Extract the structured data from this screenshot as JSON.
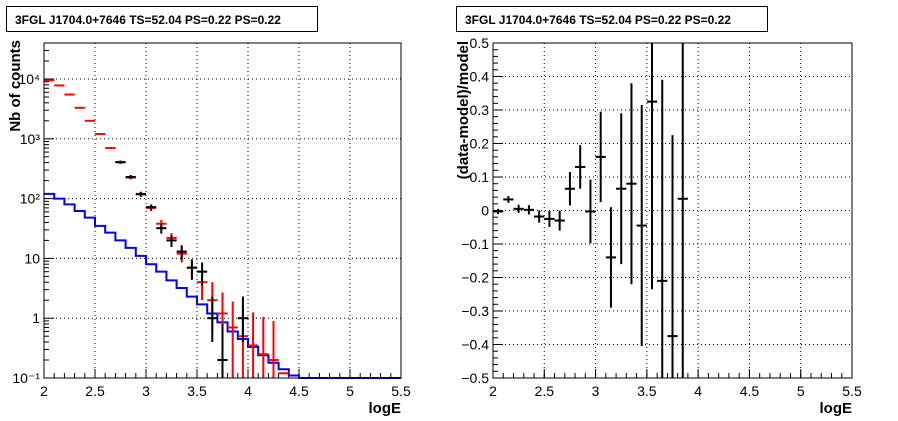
{
  "chart_data": [
    {
      "type": "step",
      "title": "3FGL J1704.0+7646 TS=52.04 PS=0.22 PS=0.22",
      "xlabel": "logE",
      "ylabel": "Nb of counts",
      "xlim": [
        2,
        5.5
      ],
      "ylim": [
        0.1,
        40000
      ],
      "yscale": "log",
      "grid": true,
      "x_ticks": [
        "2",
        "2.5",
        "3",
        "3.5",
        "4",
        "4.5",
        "5",
        "5.5"
      ],
      "y_ticks": [
        "10^-1",
        "1",
        "10",
        "10^2",
        "10^3",
        "10^4"
      ],
      "bin_edges": [
        2.0,
        2.1,
        2.2,
        2.3,
        2.4,
        2.5,
        2.6,
        2.7,
        2.8,
        2.9,
        3.0,
        3.1,
        3.2,
        3.3,
        3.4,
        3.5,
        3.6,
        3.7,
        3.8,
        3.9,
        4.0,
        4.1,
        4.2,
        4.3,
        4.4,
        4.5,
        4.6,
        4.7,
        4.8,
        4.9,
        5.0,
        5.1,
        5.2,
        5.3,
        5.4,
        5.5
      ],
      "series": [
        {
          "color": "#0000ff",
          "style": "step",
          "values": [
            120,
            100,
            80,
            62,
            48,
            35,
            27,
            20,
            15,
            11,
            8,
            6,
            4.3,
            3.2,
            2.3,
            1.7,
            1.2,
            0.85,
            0.6,
            0.45,
            0.33,
            0.24,
            0.18,
            0.14,
            0.11,
            0.1,
            0.1,
            0.1,
            0.1,
            0.1,
            0.1,
            0.1,
            0.1,
            0.1,
            0.1
          ]
        },
        {
          "color": "#ff0000",
          "style": "error-bars",
          "points": [
            {
              "x": 2.05,
              "y": 9500,
              "yerr": [
                0,
                0
              ]
            },
            {
              "x": 2.15,
              "y": 7800,
              "yerr": [
                0,
                0
              ]
            },
            {
              "x": 2.25,
              "y": 5500,
              "yerr": [
                0,
                0
              ]
            },
            {
              "x": 2.35,
              "y": 3300,
              "yerr": [
                0,
                0
              ]
            },
            {
              "x": 2.45,
              "y": 2000,
              "yerr": [
                0,
                0
              ]
            },
            {
              "x": 2.55,
              "y": 1200,
              "yerr": [
                0,
                0
              ]
            },
            {
              "x": 2.65,
              "y": 700,
              "yerr": [
                0,
                0
              ]
            },
            {
              "x": 2.75,
              "y": 410,
              "yerr": [
                25,
                25
              ]
            },
            {
              "x": 2.85,
              "y": 225,
              "yerr": [
                15,
                15
              ]
            },
            {
              "x": 2.95,
              "y": 120,
              "yerr": [
                11,
                11
              ]
            },
            {
              "x": 3.05,
              "y": 70,
              "yerr": [
                8,
                8
              ]
            },
            {
              "x": 3.15,
              "y": 38,
              "yerr": [
                6,
                6
              ]
            },
            {
              "x": 3.25,
              "y": 22,
              "yerr": [
                4.5,
                4.5
              ]
            },
            {
              "x": 3.35,
              "y": 12,
              "yerr": [
                3.5,
                3.5
              ]
            },
            {
              "x": 3.45,
              "y": 7,
              "yerr": [
                2.6,
                2.6
              ]
            },
            {
              "x": 3.55,
              "y": 4,
              "yerr": [
                2,
                2
              ]
            },
            {
              "x": 3.65,
              "y": 2,
              "yerr": [
                1.4,
                2
              ]
            },
            {
              "x": 3.75,
              "y": 1.2,
              "yerr": [
                1.1,
                1.5
              ]
            },
            {
              "x": 3.85,
              "y": 0.7,
              "yerr": [
                0.6,
                1.2
              ]
            },
            {
              "x": 3.95,
              "y": 0.5,
              "yerr": [
                0.42,
                1.1
              ]
            },
            {
              "x": 4.05,
              "y": 0.35,
              "yerr": [
                0.3,
                0.9
              ]
            },
            {
              "x": 4.15,
              "y": 0.25,
              "yerr": [
                0.2,
                0.8
              ]
            },
            {
              "x": 4.25,
              "y": 0.2,
              "yerr": [
                0.1,
                0.7
              ]
            },
            {
              "x": 4.35,
              "y": 0.12,
              "yerr": [
                0,
                0
              ]
            }
          ]
        },
        {
          "color": "#000000",
          "style": "error-bars",
          "points": [
            {
              "x": 2.75,
              "y": 405,
              "yerr": [
                25,
                25
              ]
            },
            {
              "x": 2.85,
              "y": 230,
              "yerr": [
                18,
                18
              ]
            },
            {
              "x": 2.95,
              "y": 118,
              "yerr": [
                11,
                11
              ]
            },
            {
              "x": 3.05,
              "y": 72,
              "yerr": [
                8,
                8
              ]
            },
            {
              "x": 3.15,
              "y": 32,
              "yerr": [
                6,
                6
              ]
            },
            {
              "x": 3.25,
              "y": 20,
              "yerr": [
                4.5,
                4.5
              ]
            },
            {
              "x": 3.35,
              "y": 13,
              "yerr": [
                3.6,
                3.6
              ]
            },
            {
              "x": 3.45,
              "y": 7,
              "yerr": [
                2.6,
                2.6
              ]
            },
            {
              "x": 3.55,
              "y": 6,
              "yerr": [
                2.5,
                2.5
              ]
            },
            {
              "x": 3.65,
              "y": 1,
              "yerr": [
                0.6,
                1.3
              ]
            },
            {
              "x": 3.75,
              "y": 0.2,
              "yerr": [
                0.1,
                0.6
              ]
            },
            {
              "x": 3.95,
              "y": 1,
              "yerr": [
                0.6,
                1.3
              ]
            }
          ]
        }
      ]
    },
    {
      "type": "error-bars",
      "title": "3FGL J1704.0+7646 TS=52.04 PS=0.22 PS=0.22",
      "xlabel": "logE",
      "ylabel": "(data-model)/model",
      "xlim": [
        2,
        5.5
      ],
      "ylim": [
        -0.5,
        0.5
      ],
      "grid": true,
      "x_ticks": [
        "2",
        "2.5",
        "3",
        "3.5",
        "4",
        "4.5",
        "5",
        "5.5"
      ],
      "y_ticks": [
        "-0.5",
        "-0.4",
        "-0.3",
        "-0.2",
        "-0.1",
        "0",
        "0.1",
        "0.2",
        "0.3",
        "0.4",
        "0.5"
      ],
      "series": [
        {
          "color": "#000000",
          "points": [
            {
              "x": 2.05,
              "y": -0.003,
              "yerr": 0.008
            },
            {
              "x": 2.15,
              "y": 0.033,
              "yerr": 0.01
            },
            {
              "x": 2.25,
              "y": 0.005,
              "yerr": 0.012
            },
            {
              "x": 2.35,
              "y": 0.002,
              "yerr": 0.014
            },
            {
              "x": 2.45,
              "y": -0.018,
              "yerr": 0.018
            },
            {
              "x": 2.55,
              "y": -0.025,
              "yerr": 0.024
            },
            {
              "x": 2.65,
              "y": -0.03,
              "yerr": 0.03
            },
            {
              "x": 2.75,
              "y": 0.065,
              "yerr": 0.05
            },
            {
              "x": 2.85,
              "y": 0.13,
              "yerr": 0.065
            },
            {
              "x": 2.95,
              "y": -0.003,
              "yerr": 0.095
            },
            {
              "x": 3.05,
              "y": 0.16,
              "yerr": 0.135
            },
            {
              "x": 3.15,
              "y": -0.14,
              "yerr": 0.15
            },
            {
              "x": 3.25,
              "y": 0.065,
              "yerr": 0.225
            },
            {
              "x": 3.35,
              "y": 0.08,
              "yerr": 0.3
            },
            {
              "x": 3.45,
              "y": -0.045,
              "yerr": 0.36
            },
            {
              "x": 3.55,
              "y": 0.325,
              "yerr": 0.56
            },
            {
              "x": 3.65,
              "y": -0.21,
              "yerr": 0.6
            },
            {
              "x": 3.75,
              "y": -0.375,
              "yerr": 0.6
            },
            {
              "x": 3.85,
              "y": 0.035,
              "yerr": 0.6
            }
          ]
        }
      ]
    }
  ]
}
